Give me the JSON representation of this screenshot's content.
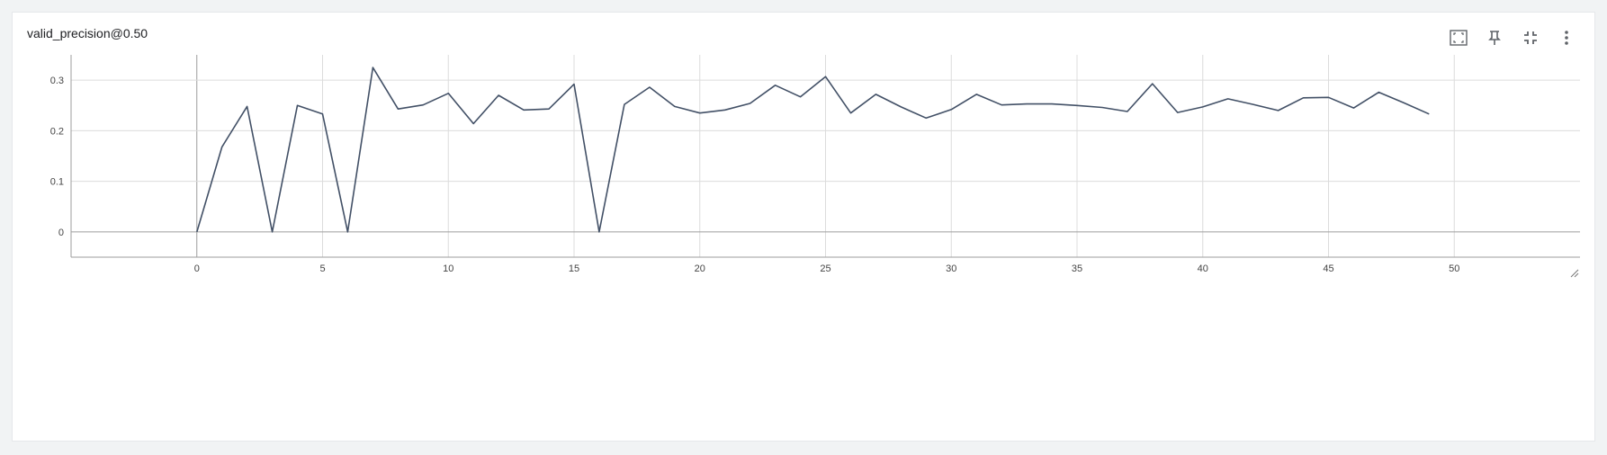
{
  "card": {
    "title": "valid_precision@0.50"
  },
  "toolbar": {
    "buttons": [
      {
        "name": "fit-domain-button",
        "icon": "fit-to-data-icon"
      },
      {
        "name": "pin-button",
        "icon": "pin-icon"
      },
      {
        "name": "collapse-button",
        "icon": "fullscreen-exit-icon"
      },
      {
        "name": "more-options-button",
        "icon": "more-vert-icon"
      }
    ]
  },
  "chart_data": {
    "type": "line",
    "title": "valid_precision@0.50",
    "xlabel": "",
    "ylabel": "",
    "xlim": [
      -5,
      55
    ],
    "ylim": [
      -0.05,
      0.35
    ],
    "xticks": [
      0,
      5,
      10,
      15,
      20,
      25,
      30,
      35,
      40,
      45,
      50
    ],
    "yticks": [
      0,
      0.1,
      0.2,
      0.3
    ],
    "ytick_labels": [
      "0",
      "0.1",
      "0.2",
      "0.3"
    ],
    "grid": true,
    "line_color": "#425066",
    "series": [
      {
        "x": [
          0,
          1,
          2,
          3,
          4,
          5,
          6,
          7,
          8,
          9,
          10,
          11,
          12,
          13,
          14,
          15,
          16,
          17,
          18,
          19,
          20,
          21,
          22,
          23,
          24,
          25,
          26,
          27,
          28,
          29,
          30,
          31,
          32,
          33,
          34,
          35,
          36,
          37,
          38,
          39,
          40,
          41,
          42,
          43,
          44,
          45,
          46,
          47,
          48,
          49
        ],
        "values": [
          0,
          0.168,
          0.248,
          0,
          0.25,
          0.233,
          0,
          0.325,
          0.243,
          0.251,
          0.274,
          0.214,
          0.27,
          0.241,
          0.243,
          0.292,
          0,
          0.252,
          0.286,
          0.248,
          0.235,
          0.241,
          0.254,
          0.29,
          0.267,
          0.307,
          0.235,
          0.272,
          0.247,
          0.225,
          0.242,
          0.272,
          0.251,
          0.253,
          0.253,
          0.25,
          0.246,
          0.238,
          0.293,
          0.236,
          0.247,
          0.263,
          0.252,
          0.24,
          0.265,
          0.266,
          0.245,
          0.276,
          0.255,
          0.233
        ]
      }
    ]
  }
}
